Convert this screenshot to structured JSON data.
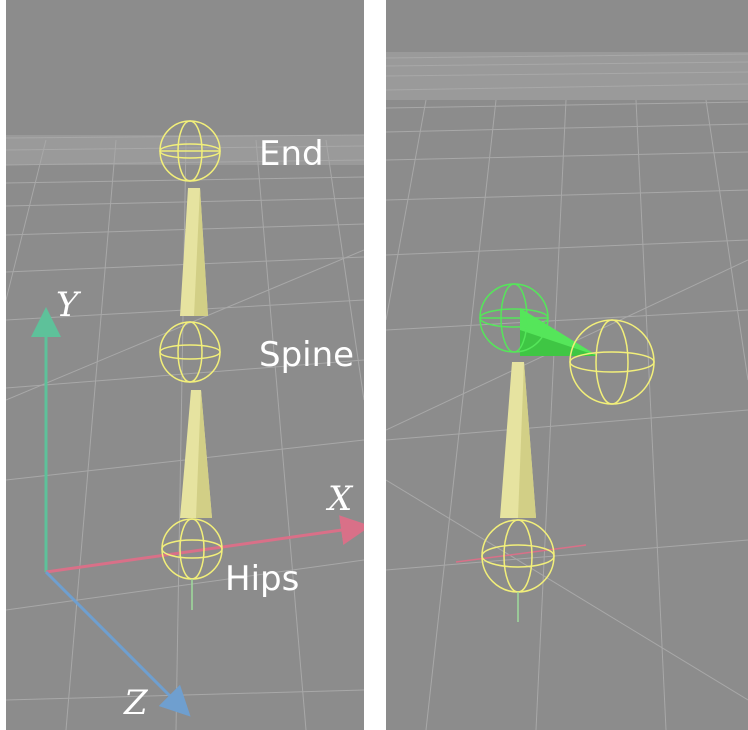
{
  "left_view": {
    "bones": {
      "end": "End",
      "spine": "Spine",
      "hips": "Hips"
    },
    "axes": {
      "y": "Y",
      "x": "X",
      "z": "Z"
    },
    "colors": {
      "background": "#8c8c8c",
      "grid": "#a8a8a8",
      "bone": "#e6e3a0",
      "joint": "#f2ef7a",
      "y_axis": "#5ec19a",
      "x_axis": "#d97088",
      "z_axis": "#6f9fcf"
    }
  },
  "right_view": {
    "colors": {
      "background": "#8c8c8c",
      "grid": "#a8a8a8",
      "bone": "#e6e3a0",
      "joint": "#f2ef7a",
      "selected": "#55e65a"
    }
  }
}
